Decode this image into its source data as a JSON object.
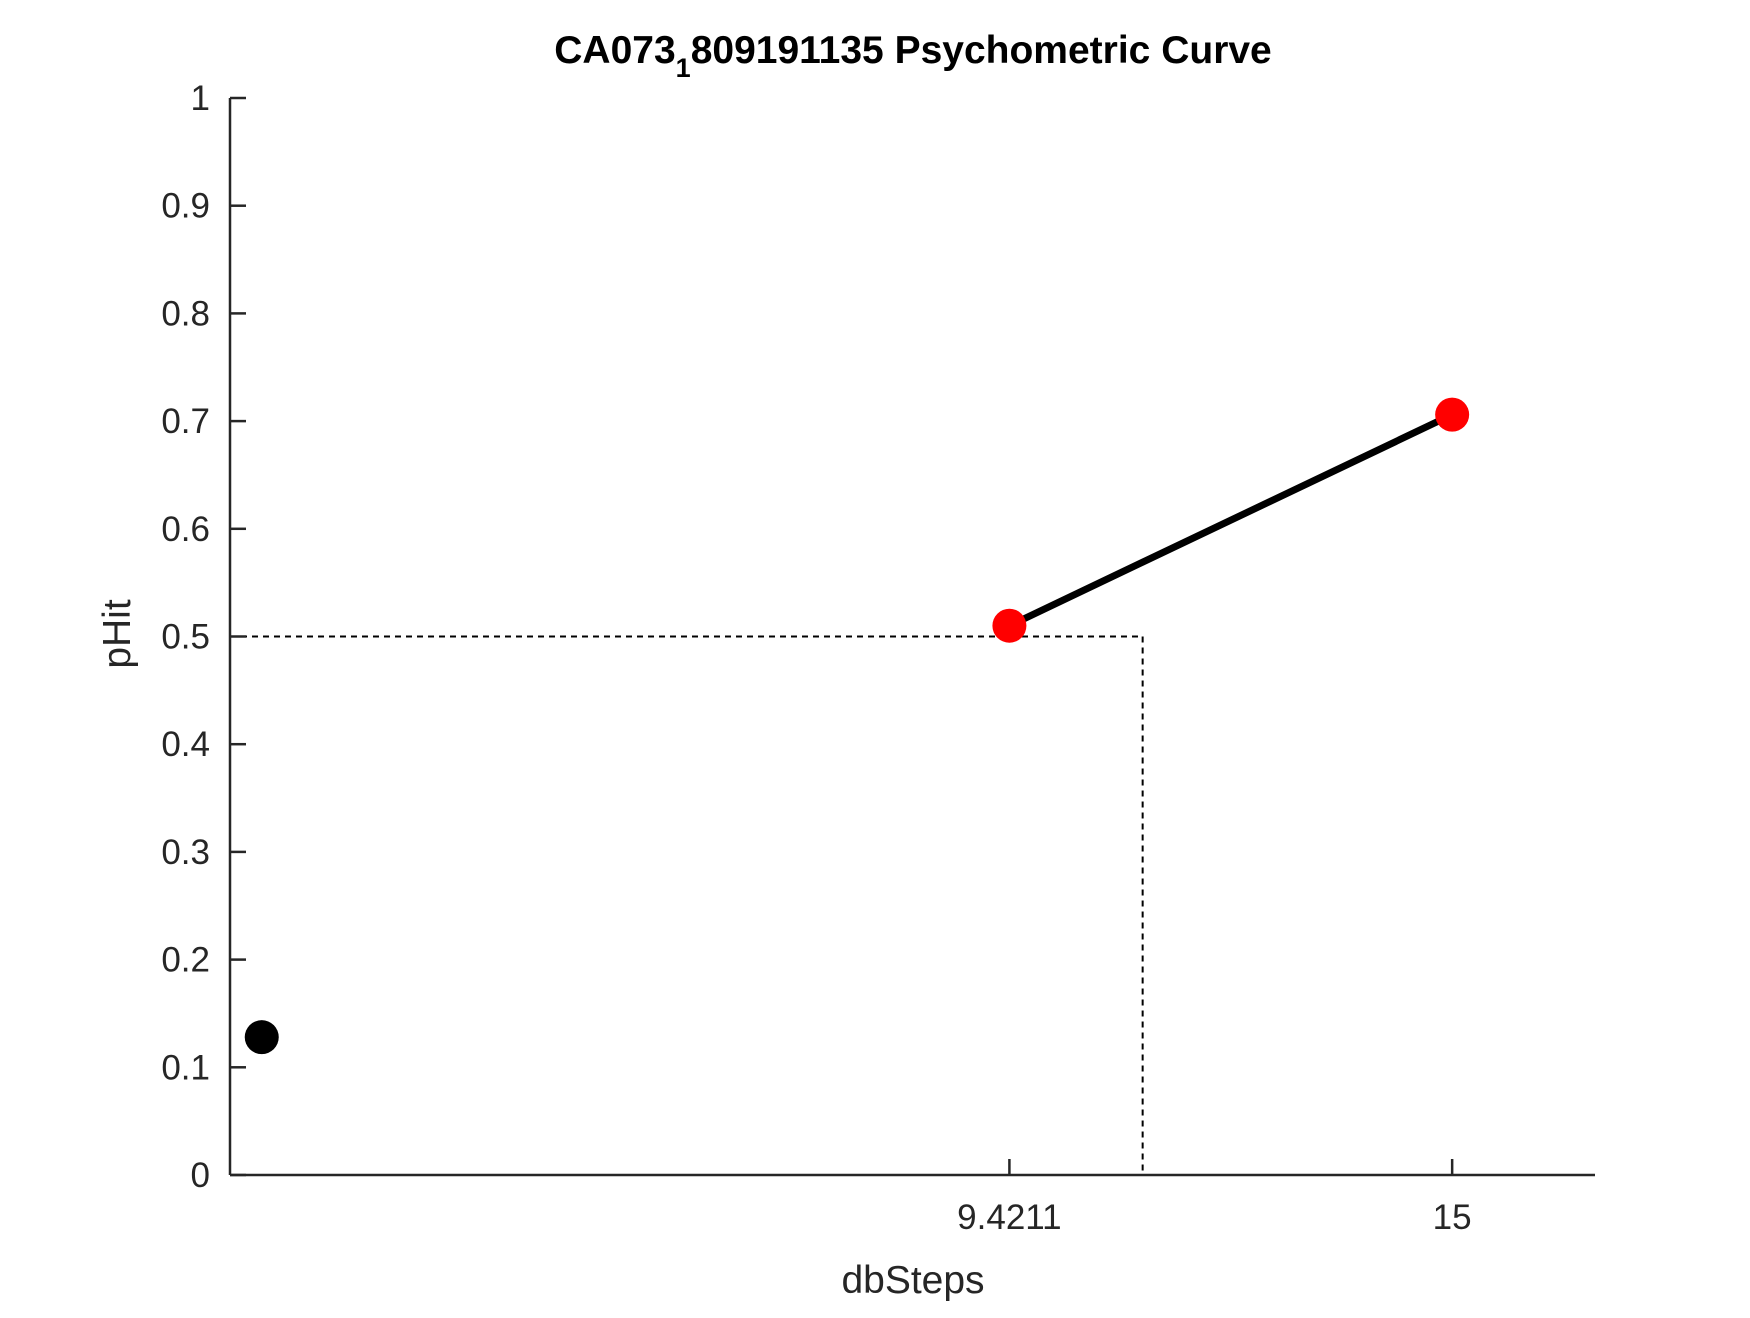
{
  "chart_data": {
    "type": "scatter",
    "title": {
      "main": "CA073",
      "subscript": "1",
      "rest": "809191135 Psychometric Curve"
    },
    "xlabel": "dbSteps",
    "ylabel": "pHit",
    "xlim": [
      -0.4,
      16.8
    ],
    "ylim": [
      0,
      1
    ],
    "x_ticks": [
      {
        "value": 9.4211,
        "label": "9.4211"
      },
      {
        "value": 15,
        "label": "15"
      }
    ],
    "y_ticks": [
      {
        "value": 0,
        "label": "0"
      },
      {
        "value": 0.1,
        "label": "0.1"
      },
      {
        "value": 0.2,
        "label": "0.2"
      },
      {
        "value": 0.3,
        "label": "0.3"
      },
      {
        "value": 0.4,
        "label": "0.4"
      },
      {
        "value": 0.5,
        "label": "0.5"
      },
      {
        "value": 0.6,
        "label": "0.6"
      },
      {
        "value": 0.7,
        "label": "0.7"
      },
      {
        "value": 0.8,
        "label": "0.8"
      },
      {
        "value": 0.9,
        "label": "0.9"
      },
      {
        "value": 1,
        "label": "1"
      }
    ],
    "series": [
      {
        "kind": "points",
        "color": "#000000",
        "points": [
          {
            "x": 0,
            "y": 0.128
          }
        ]
      },
      {
        "kind": "line",
        "color": "#000000",
        "points": [
          {
            "x": 9.4211,
            "y": 0.51
          },
          {
            "x": 15,
            "y": 0.706
          }
        ]
      },
      {
        "kind": "points",
        "color": "#ff0000",
        "points": [
          {
            "x": 9.4211,
            "y": 0.51
          },
          {
            "x": 15,
            "y": 0.706
          }
        ]
      }
    ],
    "threshold": {
      "x": 11.1,
      "y": 0.5,
      "style": "dashed",
      "color": "#000000"
    },
    "grid": false,
    "legend": false,
    "box": false
  }
}
